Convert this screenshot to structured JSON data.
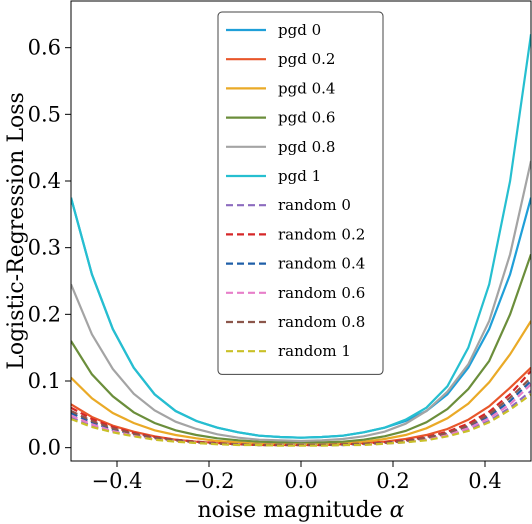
{
  "chart_data": {
    "type": "line",
    "xlabel": "noise magnitude",
    "xlabel_symbol": "α",
    "ylabel": "Logistic-Regression Loss",
    "xlim": [
      -0.5,
      0.5
    ],
    "ylim": [
      -0.02,
      0.67
    ],
    "xticks": [
      -0.4,
      -0.2,
      0.0,
      0.2,
      0.4
    ],
    "xtick_labels": [
      "−0.4",
      "−0.2",
      "0.0",
      "0.2",
      "0.4"
    ],
    "yticks": [
      0.0,
      0.1,
      0.2,
      0.3,
      0.4,
      0.5,
      0.6
    ],
    "ytick_labels": [
      "0.0",
      "0.1",
      "0.2",
      "0.3",
      "0.4",
      "0.5",
      "0.6"
    ],
    "grid": false,
    "legend_position": "top-center",
    "x": [
      -0.5,
      -0.4545,
      -0.4091,
      -0.3636,
      -0.3182,
      -0.2727,
      -0.2273,
      -0.1818,
      -0.1364,
      -0.0909,
      -0.0455,
      0.0,
      0.0455,
      0.0909,
      0.1364,
      0.1818,
      0.2273,
      0.2727,
      0.3182,
      0.3636,
      0.4091,
      0.4545,
      0.5
    ],
    "series": [
      {
        "name": "pgd 0",
        "color": "#1f9fd8",
        "dash": "solid",
        "values": [
          0.375,
          0.26,
          0.178,
          0.12,
          0.08,
          0.055,
          0.04,
          0.03,
          0.023,
          0.018,
          0.016,
          0.015,
          0.016,
          0.018,
          0.023,
          0.03,
          0.04,
          0.055,
          0.08,
          0.12,
          0.178,
          0.26,
          0.375
        ]
      },
      {
        "name": "pgd 0.2",
        "color": "#e8562a",
        "dash": "solid",
        "values": [
          0.065,
          0.046,
          0.033,
          0.024,
          0.017,
          0.012,
          0.009,
          0.007,
          0.005,
          0.004,
          0.004,
          0.004,
          0.004,
          0.005,
          0.007,
          0.009,
          0.013,
          0.019,
          0.028,
          0.042,
          0.062,
          0.09,
          0.12
        ]
      },
      {
        "name": "pgd 0.4",
        "color": "#eaaa27",
        "dash": "solid",
        "values": [
          0.105,
          0.074,
          0.052,
          0.037,
          0.026,
          0.019,
          0.014,
          0.01,
          0.008,
          0.006,
          0.006,
          0.005,
          0.006,
          0.007,
          0.009,
          0.013,
          0.019,
          0.029,
          0.044,
          0.066,
          0.098,
          0.14,
          0.19
        ]
      },
      {
        "name": "pgd 0.6",
        "color": "#6b8e3b",
        "dash": "solid",
        "values": [
          0.16,
          0.11,
          0.077,
          0.053,
          0.037,
          0.026,
          0.019,
          0.014,
          0.011,
          0.009,
          0.008,
          0.008,
          0.008,
          0.009,
          0.012,
          0.017,
          0.025,
          0.038,
          0.058,
          0.088,
          0.13,
          0.2,
          0.29
        ]
      },
      {
        "name": "pgd 0.8",
        "color": "#a4a4a4",
        "dash": "solid",
        "values": [
          0.245,
          0.17,
          0.118,
          0.081,
          0.056,
          0.039,
          0.028,
          0.02,
          0.015,
          0.012,
          0.011,
          0.01,
          0.011,
          0.013,
          0.017,
          0.024,
          0.036,
          0.055,
          0.084,
          0.125,
          0.19,
          0.29,
          0.43
        ]
      },
      {
        "name": "pgd 1",
        "color": "#26bfd0",
        "dash": "solid",
        "values": [
          0.375,
          0.26,
          0.178,
          0.12,
          0.08,
          0.055,
          0.04,
          0.03,
          0.023,
          0.018,
          0.016,
          0.015,
          0.016,
          0.018,
          0.023,
          0.03,
          0.042,
          0.06,
          0.092,
          0.15,
          0.245,
          0.4,
          0.62
        ]
      },
      {
        "name": "random 0",
        "color": "#8c6bbf",
        "dash": "dashed",
        "values": [
          0.045,
          0.033,
          0.024,
          0.018,
          0.013,
          0.01,
          0.007,
          0.006,
          0.005,
          0.004,
          0.004,
          0.004,
          0.004,
          0.004,
          0.005,
          0.006,
          0.008,
          0.012,
          0.018,
          0.027,
          0.04,
          0.06,
          0.085
        ]
      },
      {
        "name": "random 0.2",
        "color": "#d62728",
        "dash": "dashed",
        "values": [
          0.06,
          0.043,
          0.031,
          0.022,
          0.016,
          0.012,
          0.009,
          0.007,
          0.005,
          0.004,
          0.004,
          0.004,
          0.004,
          0.005,
          0.006,
          0.008,
          0.011,
          0.016,
          0.024,
          0.036,
          0.054,
          0.08,
          0.115
        ]
      },
      {
        "name": "random 0.4",
        "color": "#1f5fa8",
        "dash": "dashed",
        "values": [
          0.052,
          0.038,
          0.027,
          0.02,
          0.014,
          0.011,
          0.008,
          0.006,
          0.005,
          0.004,
          0.004,
          0.004,
          0.004,
          0.004,
          0.005,
          0.007,
          0.01,
          0.014,
          0.021,
          0.031,
          0.047,
          0.07,
          0.1
        ]
      },
      {
        "name": "random 0.6",
        "color": "#e77fc9",
        "dash": "dashed",
        "values": [
          0.048,
          0.035,
          0.025,
          0.018,
          0.013,
          0.01,
          0.008,
          0.006,
          0.005,
          0.004,
          0.004,
          0.004,
          0.004,
          0.004,
          0.005,
          0.006,
          0.009,
          0.013,
          0.019,
          0.029,
          0.044,
          0.065,
          0.095
        ]
      },
      {
        "name": "random 0.8",
        "color": "#8c564b",
        "dash": "dashed",
        "values": [
          0.055,
          0.04,
          0.029,
          0.021,
          0.015,
          0.011,
          0.008,
          0.006,
          0.005,
          0.004,
          0.004,
          0.004,
          0.004,
          0.005,
          0.006,
          0.007,
          0.01,
          0.015,
          0.022,
          0.033,
          0.05,
          0.075,
          0.105
        ]
      },
      {
        "name": "random 1",
        "color": "#c9c028",
        "dash": "dashed",
        "values": [
          0.043,
          0.031,
          0.023,
          0.017,
          0.012,
          0.009,
          0.007,
          0.005,
          0.004,
          0.004,
          0.003,
          0.003,
          0.003,
          0.004,
          0.004,
          0.006,
          0.008,
          0.011,
          0.017,
          0.025,
          0.038,
          0.057,
          0.08
        ]
      }
    ]
  }
}
